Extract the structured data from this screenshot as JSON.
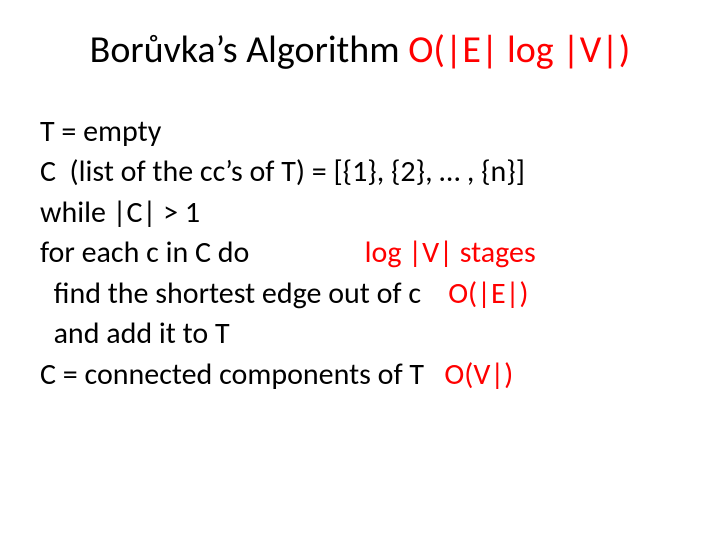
{
  "colors": {
    "red": "#ff0000",
    "black": "#000000",
    "background": "#ffffff"
  },
  "typography": {
    "title_fontsize": 38,
    "body_fontsize": 30,
    "font_family": "Calibri"
  },
  "title": {
    "part1": "Borůvka’s Algorithm  ",
    "part2": "O(|E| log |V|)"
  },
  "lines": {
    "l1": "T = empty",
    "l2": "C  (list of the cc’s of T) = [{1}, {2}, … , {n}]",
    "l3": "while |C| > 1",
    "l4a": "for each c in C do                 ",
    "l4b": "log |V| stages",
    "l5a": "  find the shortest edge out of c    ",
    "l5b": "O(|E|)",
    "l6": "  and add it to T",
    "l7a": "C = connected components of T   ",
    "l7b": "O(V|)"
  }
}
